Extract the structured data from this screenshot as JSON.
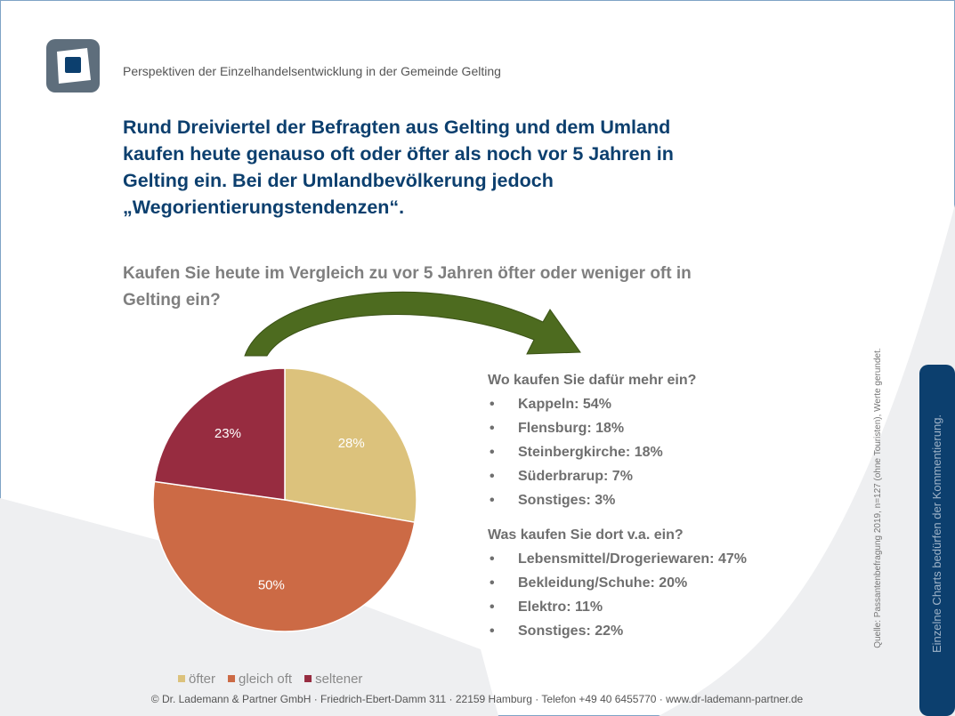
{
  "header": {
    "subtitle": "Perspektiven der Einzelhandelsentwicklung in der Gemeinde Gelting",
    "title_lines": [
      "Rund Dreiviertel der Befragten aus Gelting und dem Umland",
      "kaufen heute genauso oft oder öfter als noch vor 5 Jahren in",
      "Gelting ein. Bei der Umlandbevölkerung jedoch",
      "„Wegorientierungstendenzen“."
    ]
  },
  "question_lines": [
    "Kaufen Sie heute im Vergleich zu vor 5 Jahren öfter oder weniger oft in",
    "Gelting ein?"
  ],
  "chart_data": {
    "type": "pie",
    "categories": [
      "öfter",
      "gleich oft",
      "seltener"
    ],
    "values": [
      28,
      50,
      23
    ],
    "value_labels": [
      "28%",
      "50%",
      "23%"
    ],
    "colors": [
      "#dcc27c",
      "#cc6a45",
      "#972c40"
    ],
    "legend": "bottom"
  },
  "details": [
    {
      "heading": "Wo kaufen Sie dafür mehr ein?",
      "items": [
        "Kappeln: 54%",
        "Flensburg: 18%",
        "Steinbergkirche: 18%",
        "Süderbrarup: 7%",
        "Sonstiges: 3%"
      ]
    },
    {
      "heading": "Was kaufen Sie dort v.a. ein?",
      "items": [
        "Lebensmittel/Drogeriewaren: 47%",
        "Bekleidung/Schuhe: 20%",
        "Elektro: 11%",
        "Sonstiges: 22%"
      ]
    }
  ],
  "bullet": "•",
  "source": "Quelle: Passantenbefragung 2019, n=127 (ohne Touristen), Werte gerundet.",
  "side_note": "Einzelne Charts bedürfen der Kommentierung.",
  "footer": "© Dr. Lademann & Partner GmbH · Friedrich-Ebert-Damm 311 · 22159 Hamburg · Telefon +49 40 6455770 · www.dr-lademann-partner.de"
}
